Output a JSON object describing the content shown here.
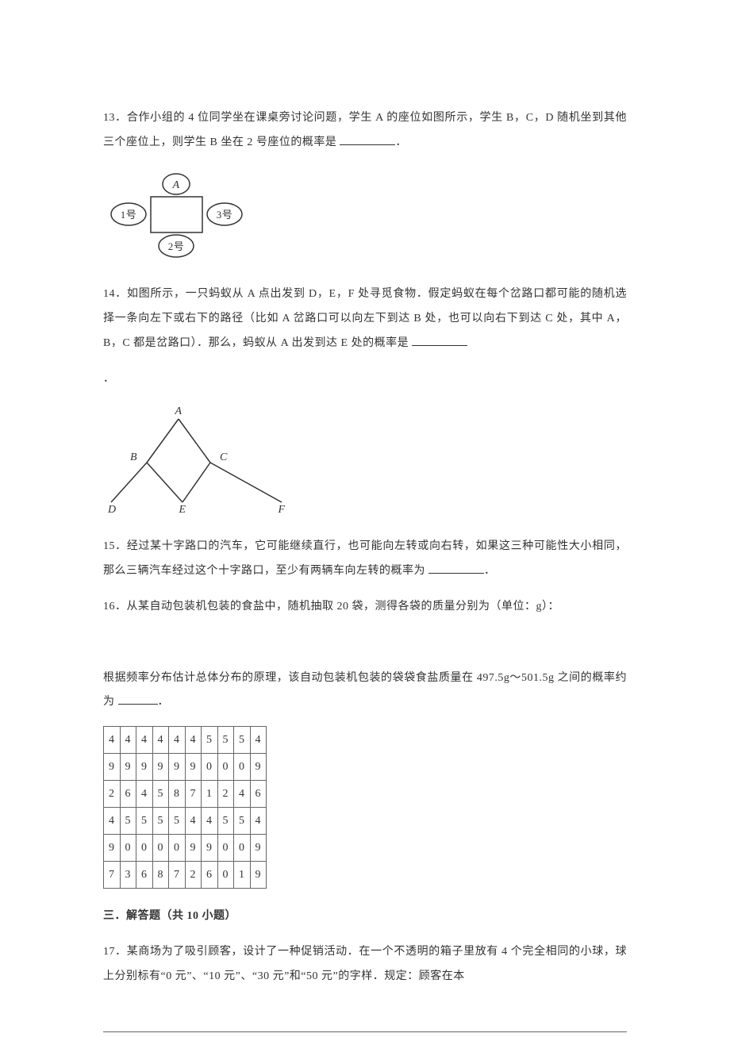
{
  "q13": {
    "text": "13．合作小组的 4 位同学坐在课桌旁讨论问题，学生 A 的座位如图所示，学生 B，C，D 随机坐到其他三个座位上，则学生 B 坐在 2 号座位的概率是",
    "figure": {
      "top_label": "A",
      "left_label": "1号",
      "right_label": "3号",
      "bottom_label": "2号",
      "rect_stroke": "#333333",
      "circle_stroke": "#333333",
      "text_color": "#333333",
      "font_size": 13
    }
  },
  "q14": {
    "text": "14．如图所示，一只蚂蚁从 A 点出发到 D，E，F 处寻觅食物．假定蚂蚁在每个岔路口都可能的随机选择一条向左下或右下的路径（比如 A 岔路口可以向左下到达 B 处，也可以向右下到达 C 处，其中 A，B，C 都是岔路口）．那么，蚂蚁从 A 出发到达 E 处的概率是",
    "period": "．",
    "figure": {
      "labels": {
        "A": "A",
        "B": "B",
        "C": "C",
        "D": "D",
        "E": "E",
        "F": "F"
      },
      "stroke": "#333333",
      "text_color": "#333333",
      "font_style": "italic",
      "font_size": 14
    }
  },
  "q15": {
    "text": "15．经过某十字路口的汽车，它可能继续直行，也可能向左转或向右转，如果这三种可能性大小相同，那么三辆汽车经过这个十字路口，至少有两辆车向左转的概率为",
    "period": "．"
  },
  "q16": {
    "text_a": "16．从某自动包装机包装的食盐中，随机抽取 20 袋，测得各袋的质量分别为（单位：g）：",
    "text_b": "根据频率分布估计总体分布的原理，该自动包装机包装的袋袋食盐质量在 497.5g～501.5g 之间的概率约为",
    "period": "．",
    "table": {
      "rows": [
        [
          "4",
          "4",
          "4",
          "4",
          "4",
          "4",
          "5",
          "5",
          "5",
          "4"
        ],
        [
          "9",
          "9",
          "9",
          "9",
          "9",
          "9",
          "0",
          "0",
          "0",
          "9"
        ],
        [
          "2",
          "6",
          "4",
          "5",
          "8",
          "7",
          "1",
          "2",
          "4",
          "6"
        ],
        [
          "4",
          "5",
          "5",
          "5",
          "5",
          "4",
          "4",
          "5",
          "5",
          "4"
        ],
        [
          "9",
          "0",
          "0",
          "0",
          "0",
          "9",
          "9",
          "0",
          "0",
          "9"
        ],
        [
          "7",
          "3",
          "6",
          "8",
          "7",
          "2",
          "6",
          "0",
          "1",
          "9"
        ]
      ],
      "border_color": "#666666",
      "cell_font_size": 14
    }
  },
  "section3": "三．解答题（共 10 小题）",
  "q17": {
    "text": "17．某商场为了吸引顾客，设计了一种促销活动．在一个不透明的箱子里放有 4 个完全相同的小球，球上分别标有“0 元”、“10 元”、“30 元”和“50 元”的字样．规定：顾客在本"
  }
}
